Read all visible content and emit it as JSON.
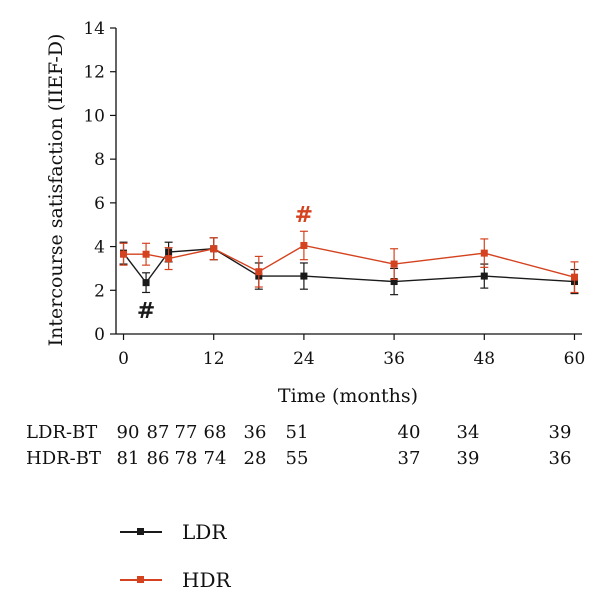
{
  "chart_data": {
    "type": "line",
    "title": "",
    "xlabel": "Time (months)",
    "ylabel": "Intercourse satisfaction (IIEF-D)",
    "xlim": [
      -1,
      61
    ],
    "ylim": [
      0,
      14
    ],
    "xticks": [
      0,
      12,
      24,
      36,
      48,
      60
    ],
    "yticks": [
      0,
      2,
      4,
      6,
      8,
      10,
      12,
      14
    ],
    "x": [
      0,
      3,
      6,
      12,
      18,
      24,
      36,
      48,
      60
    ],
    "series": [
      {
        "name": "LDR",
        "color": "#1a1a1a",
        "values": [
          3.7,
          2.35,
          3.75,
          3.9,
          2.65,
          2.65,
          2.4,
          2.65,
          2.4
        ],
        "err": [
          0.5,
          0.45,
          0.45,
          0.5,
          0.6,
          0.6,
          0.6,
          0.55,
          0.55
        ]
      },
      {
        "name": "HDR",
        "color": "#d4421f",
        "values": [
          3.65,
          3.65,
          3.45,
          3.9,
          2.85,
          4.05,
          3.2,
          3.7,
          2.6
        ],
        "err": [
          0.5,
          0.5,
          0.5,
          0.5,
          0.7,
          0.65,
          0.7,
          0.65,
          0.7
        ]
      }
    ],
    "annotations": [
      {
        "text": "#",
        "x": 3,
        "y": 1.1,
        "series": "LDR"
      },
      {
        "text": "#",
        "x": 24,
        "y": 5.5,
        "series": "HDR"
      }
    ],
    "grid": false,
    "legend_position": "bottom-left"
  },
  "at_risk": {
    "rows": [
      {
        "label": "LDR-BT",
        "values": [
          "90",
          "87",
          "77",
          "68",
          "36",
          "51",
          "40",
          "34",
          "39"
        ]
      },
      {
        "label": "HDR-BT",
        "values": [
          "81",
          "86",
          "78",
          "74",
          "28",
          "55",
          "37",
          "39",
          "36"
        ]
      }
    ]
  }
}
